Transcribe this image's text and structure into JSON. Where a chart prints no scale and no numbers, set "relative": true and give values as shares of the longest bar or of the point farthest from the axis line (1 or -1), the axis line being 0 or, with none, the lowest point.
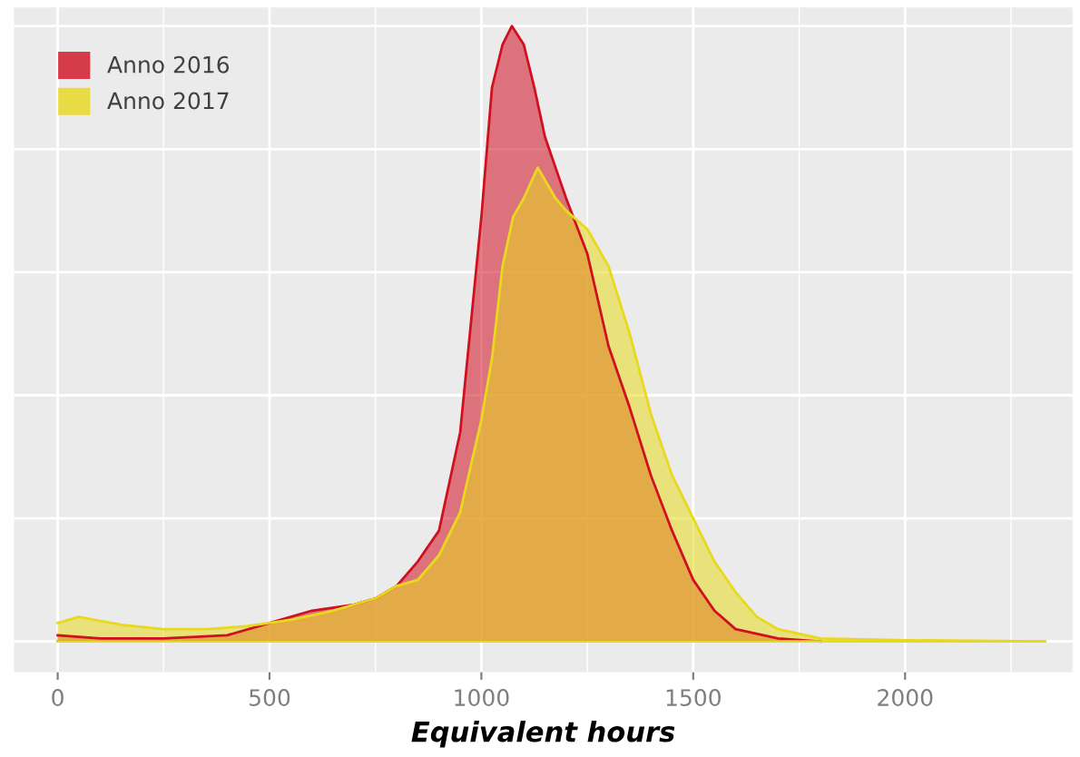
{
  "chart_data": {
    "type": "area",
    "xlabel": "Equivalent hours",
    "relative": true,
    "xlim": [
      -103,
      2395
    ],
    "xticks": [
      0,
      500,
      1000,
      1500,
      2000
    ],
    "grid": true,
    "legend": "top left",
    "series": [
      {
        "name": "Anno 2016",
        "color": "#d01020",
        "x": [
          0,
          100,
          250,
          400,
          500,
          600,
          700,
          750,
          800,
          850,
          900,
          950,
          1000,
          1025,
          1050,
          1072,
          1100,
          1125,
          1150,
          1175,
          1200,
          1250,
          1300,
          1350,
          1400,
          1450,
          1500,
          1550,
          1600,
          1700,
          1800
        ],
        "values": [
          0.01,
          0.005,
          0.005,
          0.01,
          0.03,
          0.05,
          0.06,
          0.07,
          0.09,
          0.13,
          0.18,
          0.34,
          0.69,
          0.9,
          0.97,
          1.0,
          0.97,
          0.9,
          0.82,
          0.77,
          0.72,
          0.63,
          0.48,
          0.38,
          0.27,
          0.18,
          0.1,
          0.05,
          0.02,
          0.005,
          0
        ]
      },
      {
        "name": "Anno 2017",
        "color": "#e8d81e",
        "x": [
          0,
          50,
          150,
          250,
          350,
          450,
          550,
          650,
          750,
          800,
          850,
          900,
          950,
          1000,
          1025,
          1050,
          1075,
          1100,
          1133,
          1150,
          1175,
          1200,
          1250,
          1300,
          1350,
          1400,
          1450,
          1500,
          1550,
          1600,
          1650,
          1700,
          1800,
          2000,
          2330
        ],
        "values": [
          0.03,
          0.04,
          0.027,
          0.02,
          0.02,
          0.025,
          0.035,
          0.05,
          0.07,
          0.09,
          0.1,
          0.14,
          0.21,
          0.36,
          0.46,
          0.61,
          0.69,
          0.72,
          0.77,
          0.75,
          0.72,
          0.7,
          0.67,
          0.61,
          0.5,
          0.37,
          0.27,
          0.2,
          0.13,
          0.08,
          0.04,
          0.02,
          0.005,
          0.002,
          0
        ]
      }
    ]
  }
}
